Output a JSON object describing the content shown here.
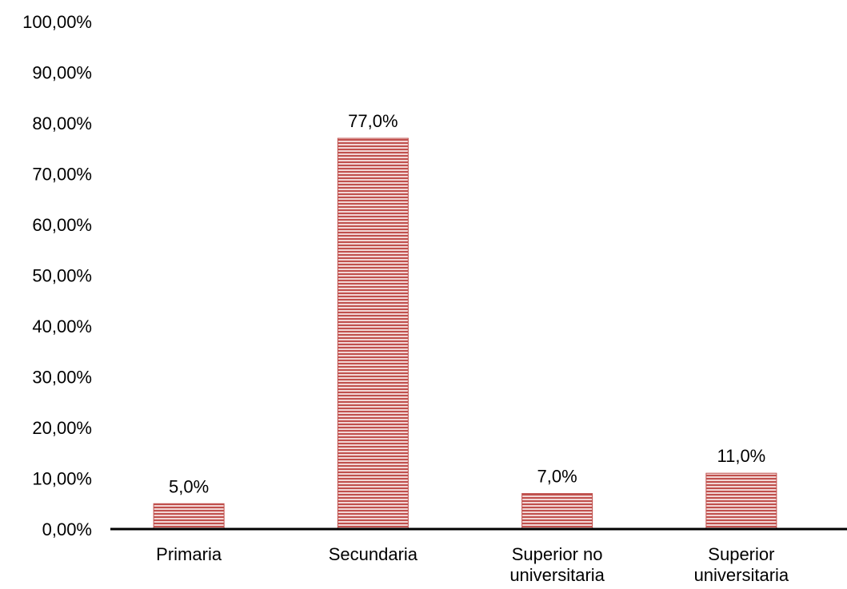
{
  "chart_data": {
    "type": "bar",
    "categories": [
      [
        "Primaria"
      ],
      [
        "Secundaria"
      ],
      [
        "Superior no",
        "universitaria"
      ],
      [
        "Superior",
        "universitaria"
      ]
    ],
    "values": [
      5.0,
      77.0,
      7.0,
      11.0
    ],
    "data_labels": [
      "5,0%",
      "77,0%",
      "7,0%",
      "11,0%"
    ],
    "y_ticks": [
      0,
      10,
      20,
      30,
      40,
      50,
      60,
      70,
      80,
      90,
      100
    ],
    "y_tick_labels": [
      "0,00%",
      "10,00%",
      "20,00%",
      "30,00%",
      "40,00%",
      "50,00%",
      "60,00%",
      "70,00%",
      "80,00%",
      "90,00%",
      "100,00%"
    ],
    "ylim": [
      0,
      100
    ],
    "title": "",
    "xlabel": "",
    "ylabel": "",
    "grid": false,
    "legend": "none",
    "bar_color": "#c0504d",
    "bar_fill_pattern": "horizontal-stripes",
    "bar_stripe_color": "#f2d6d5"
  }
}
